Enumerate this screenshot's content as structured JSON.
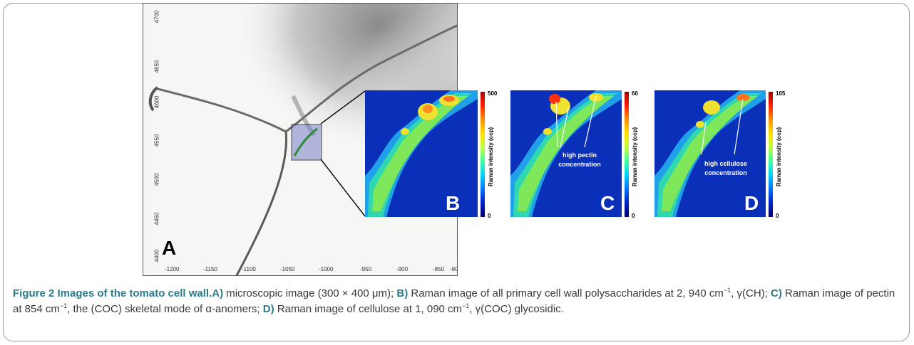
{
  "panel_a": {
    "letter": "A",
    "y_ticks": [
      "4700",
      "4650",
      "4600",
      "4550",
      "4500",
      "4450",
      "4400"
    ],
    "x_ticks": [
      "-1200",
      "-1150",
      "-1100",
      "-1050",
      "-1000",
      "-950",
      "-900",
      "-850",
      "-80"
    ]
  },
  "panel_b": {
    "letter": "B",
    "cbar_max": "500",
    "cbar_min": "0",
    "cbar_label": "Raman intensity (ccp)"
  },
  "panel_c": {
    "letter": "C",
    "cbar_max": "60",
    "cbar_min": "0",
    "cbar_label": "Raman intensity (ccp)",
    "annotation_line1": "high pectin",
    "annotation_line2": "concentration"
  },
  "panel_d": {
    "letter": "D",
    "cbar_max": "105",
    "cbar_min": "0",
    "cbar_label": "Raman intensity (ccp)",
    "annotation_line1": "high cellulose",
    "annotation_line2": "concentration"
  },
  "caption": {
    "title": "Figure 2 Images of the tomato cell wall.",
    "a_label": "A)",
    "a_text": " microscopic image (300 × 400 μm); ",
    "b_label": "B)",
    "b_text": " Raman image of all primary cell wall polysaccharides at 2, 940 cm",
    "b_tail": ", γ(CH); ",
    "c_label": "C)",
    "c_text": " Raman image of pectin at 854 cm",
    "c_tail": ", the (COC) skeletal mode of α-anomers; ",
    "d_label": "D)",
    "d_text": " Raman image of cellulose at 1, 090 cm",
    "d_tail": ", γ(COC) glycosidic.",
    "superscript": "−1"
  },
  "colors": {
    "heat_background": "#0a2fb8",
    "caption_label": "#2a7a8a"
  }
}
